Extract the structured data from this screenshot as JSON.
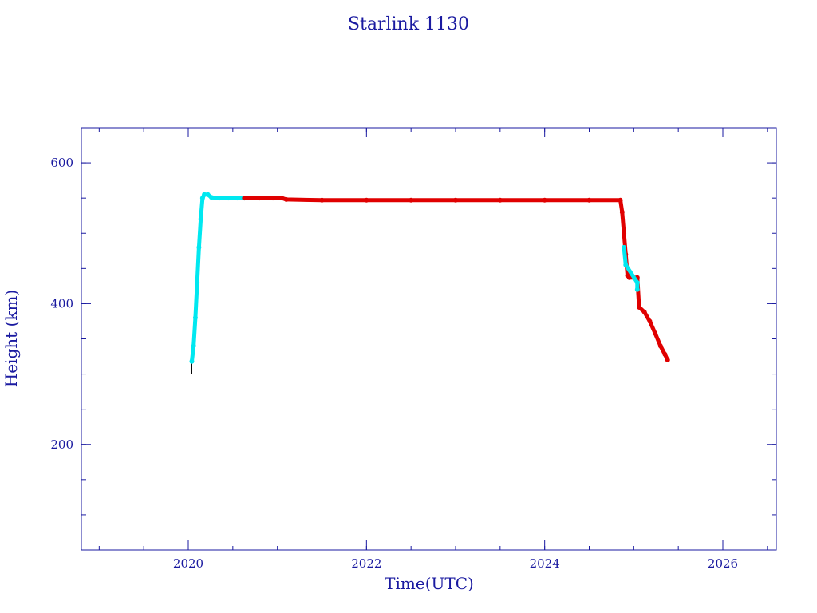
{
  "chart_data": {
    "type": "scatter",
    "title": "Starlink 1130",
    "xlabel": "Time(UTC)",
    "ylabel": "Height (km)",
    "xlim": [
      2018.8,
      2026.6
    ],
    "ylim": [
      50,
      650
    ],
    "x_ticks": [
      {
        "value": 2020,
        "label": "2020"
      },
      {
        "value": 2022,
        "label": "2022"
      },
      {
        "value": 2024,
        "label": "2024"
      },
      {
        "value": 2026,
        "label": "2026"
      }
    ],
    "y_ticks": [
      {
        "value": 200,
        "label": "200"
      },
      {
        "value": 400,
        "label": "400"
      },
      {
        "value": 600,
        "label": "600"
      }
    ],
    "x_minor_step": 0.5,
    "y_minor_step": 50,
    "grid": false,
    "colors": {
      "axis": "#1a1aa0",
      "cyan_series": "#00e8f0",
      "red_series": "#e00000",
      "launch_marker": "#000000"
    },
    "launch_marker": {
      "x": 2020.04,
      "y_start": 300,
      "y_end": 320
    },
    "series": [
      {
        "color_key": "cyan_series",
        "points": [
          [
            2020.04,
            318
          ],
          [
            2020.06,
            340
          ],
          [
            2020.08,
            380
          ],
          [
            2020.1,
            430
          ],
          [
            2020.12,
            480
          ],
          [
            2020.14,
            520
          ],
          [
            2020.16,
            550
          ],
          [
            2020.18,
            555
          ],
          [
            2020.22,
            555
          ],
          [
            2020.26,
            551
          ],
          [
            2020.35,
            550
          ],
          [
            2020.45,
            550
          ],
          [
            2020.55,
            550
          ],
          [
            2020.63,
            550
          ]
        ]
      },
      {
        "color_key": "red_series",
        "points": [
          [
            2020.63,
            550
          ],
          [
            2020.8,
            550
          ],
          [
            2020.95,
            550
          ],
          [
            2021.05,
            550
          ],
          [
            2021.1,
            548
          ],
          [
            2021.5,
            547
          ],
          [
            2022.0,
            547
          ],
          [
            2022.5,
            547
          ],
          [
            2023.0,
            547
          ],
          [
            2023.5,
            547
          ],
          [
            2024.0,
            547
          ],
          [
            2024.5,
            547
          ],
          [
            2024.85,
            547
          ],
          [
            2024.87,
            530
          ],
          [
            2024.89,
            500
          ],
          [
            2024.91,
            470
          ],
          [
            2024.93,
            440
          ],
          [
            2024.95,
            437
          ],
          [
            2025.0,
            437
          ],
          [
            2025.04,
            437
          ],
          [
            2025.06,
            395
          ],
          [
            2025.12,
            388
          ],
          [
            2025.18,
            375
          ],
          [
            2025.24,
            358
          ],
          [
            2025.3,
            340
          ],
          [
            2025.35,
            328
          ],
          [
            2025.38,
            320
          ]
        ]
      },
      {
        "color_key": "cyan_series",
        "points": [
          [
            2024.89,
            480
          ],
          [
            2024.91,
            455
          ],
          [
            2025.04,
            430
          ],
          [
            2025.04,
            420
          ]
        ]
      }
    ]
  }
}
